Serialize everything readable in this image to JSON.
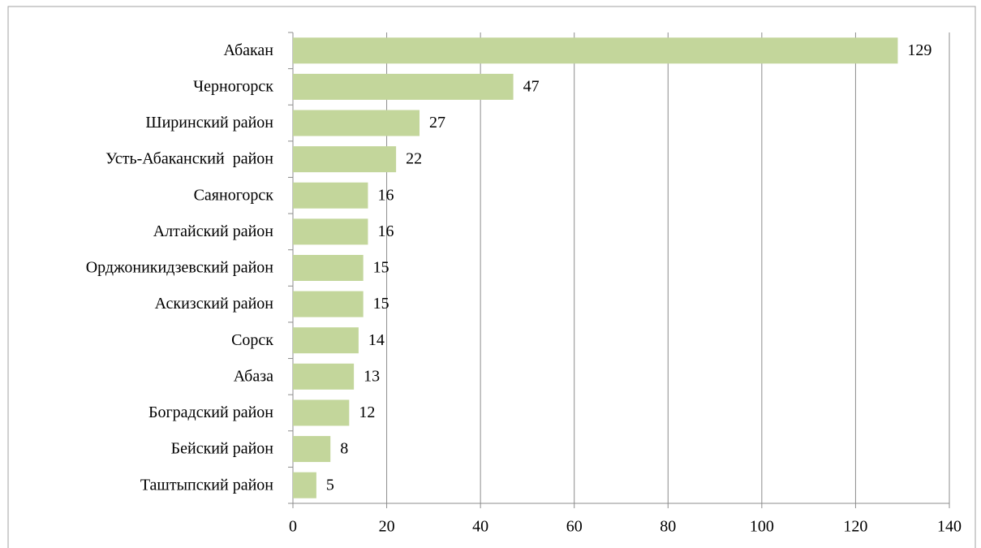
{
  "chart_data": {
    "type": "bar",
    "categories": [
      "Абакан",
      "Черногорск",
      "Ширинский район",
      "Усть-Абаканский  район",
      "Саяногорск",
      "Алтайский район",
      "Орджоникидзевский район",
      "Аскизский район",
      "Сорск",
      "Абаза",
      "Боградский район",
      "Бейский район",
      "Таштыпский район"
    ],
    "values": [
      129,
      47,
      27,
      22,
      16,
      16,
      15,
      15,
      14,
      13,
      12,
      8,
      5
    ],
    "color": "#c3d69b",
    "xlim": [
      0,
      140
    ],
    "xticks": [
      0,
      20,
      40,
      60,
      80,
      100,
      120,
      140
    ],
    "grid": true
  }
}
